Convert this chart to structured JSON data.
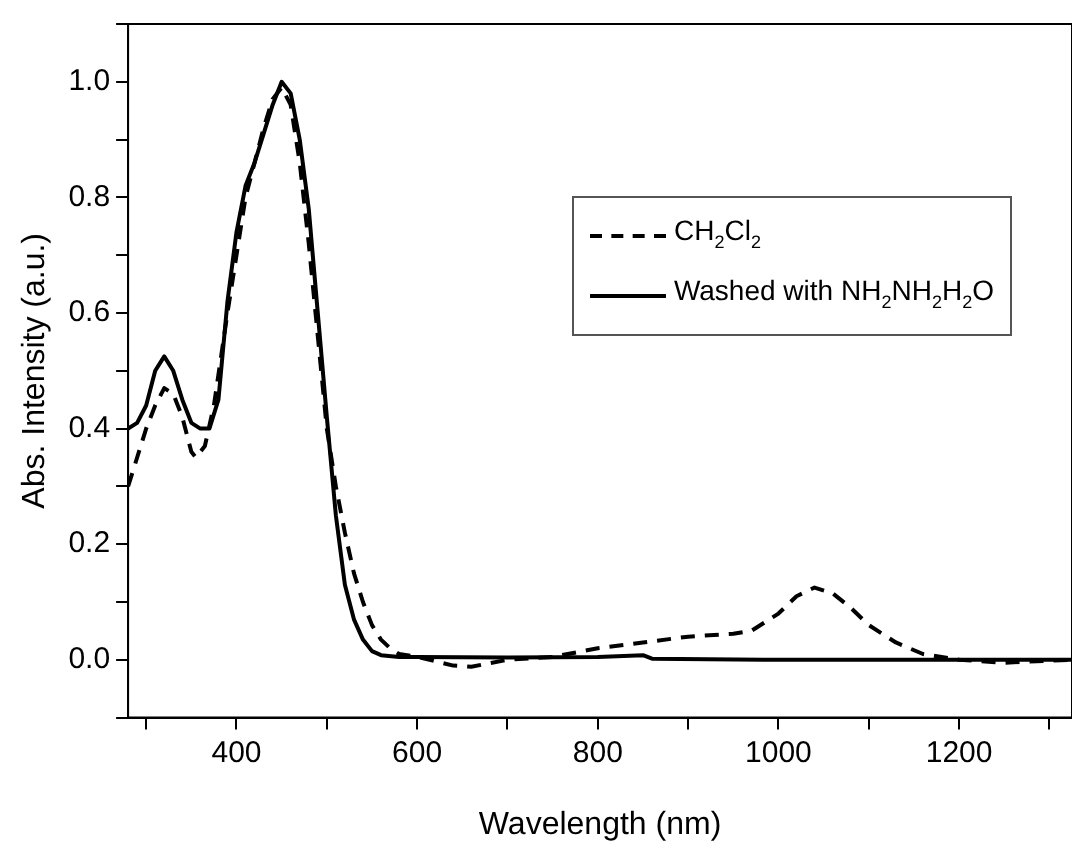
{
  "chart_data": {
    "type": "line",
    "xlabel": "Wavelength (nm)",
    "ylabel": "Abs. Intensity (a.u.)",
    "xlim": [
      280,
      1325
    ],
    "ylim": [
      -0.1,
      1.1
    ],
    "xticks": [
      {
        "value": 300,
        "label": null
      },
      400,
      {
        "value": 500,
        "label": null
      },
      600,
      {
        "value": 700,
        "label": null
      },
      800,
      {
        "value": 900,
        "label": null
      },
      1000,
      {
        "value": 1100,
        "label": null
      },
      1200,
      {
        "value": 1300,
        "label": null
      }
    ],
    "yticks": [
      {
        "value": -0.1,
        "label": null
      },
      {
        "value": 0,
        "label": "0.0"
      },
      {
        "value": 0.1,
        "label": null
      },
      0.2,
      {
        "value": 0.3,
        "label": null
      },
      0.4,
      {
        "value": 0.5,
        "label": null
      },
      0.6,
      {
        "value": 0.7,
        "label": null
      },
      0.8,
      {
        "value": 0.9,
        "label": null
      },
      {
        "value": 1,
        "label": "1.0"
      },
      {
        "value": 1.1,
        "label": null
      }
    ],
    "grid": false,
    "legend": "top right",
    "marker": "none",
    "series": [
      {
        "name": "CH$_{2}$Cl$_{2}$",
        "color": "#000000",
        "line_style": "dashed",
        "x": [
          280,
          290,
          300,
          310,
          320,
          330,
          340,
          350,
          355,
          365,
          375,
          390,
          400,
          410,
          420,
          430,
          440,
          450,
          460,
          470,
          480,
          490,
          500,
          510,
          520,
          530,
          540,
          550,
          560,
          570,
          580,
          600,
          640,
          660,
          700,
          750,
          800,
          850,
          900,
          950,
          970,
          1000,
          1020,
          1040,
          1060,
          1080,
          1100,
          1130,
          1160,
          1200,
          1250,
          1325
        ],
        "values": [
          0.3,
          0.35,
          0.4,
          0.44,
          0.47,
          0.46,
          0.42,
          0.36,
          0.35,
          0.37,
          0.44,
          0.6,
          0.7,
          0.8,
          0.86,
          0.92,
          0.97,
          0.99,
          0.96,
          0.86,
          0.72,
          0.56,
          0.4,
          0.3,
          0.22,
          0.15,
          0.1,
          0.06,
          0.035,
          0.02,
          0.01,
          0.005,
          -0.01,
          -0.012,
          0.0,
          0.005,
          0.02,
          0.03,
          0.04,
          0.045,
          0.05,
          0.08,
          0.11,
          0.125,
          0.115,
          0.09,
          0.06,
          0.03,
          0.01,
          0.0,
          -0.005,
          0.0
        ]
      },
      {
        "name": "Washed with NH$_{2}$NH$_{2}$H$_{2}$O",
        "color": "#000000",
        "line_style": "solid",
        "x": [
          280,
          290,
          300,
          310,
          320,
          330,
          340,
          350,
          360,
          370,
          380,
          390,
          400,
          410,
          420,
          430,
          440,
          450,
          460,
          470,
          480,
          490,
          500,
          510,
          520,
          530,
          540,
          550,
          560,
          580,
          600,
          700,
          800,
          850,
          860,
          1000,
          1200,
          1325
        ],
        "values": [
          0.4,
          0.41,
          0.44,
          0.5,
          0.525,
          0.5,
          0.45,
          0.41,
          0.4,
          0.4,
          0.45,
          0.62,
          0.74,
          0.82,
          0.86,
          0.91,
          0.96,
          1.0,
          0.98,
          0.9,
          0.78,
          0.6,
          0.42,
          0.25,
          0.13,
          0.07,
          0.035,
          0.015,
          0.008,
          0.005,
          0.005,
          0.004,
          0.005,
          0.008,
          0.002,
          0.0,
          0.0,
          0.0
        ]
      }
    ]
  }
}
